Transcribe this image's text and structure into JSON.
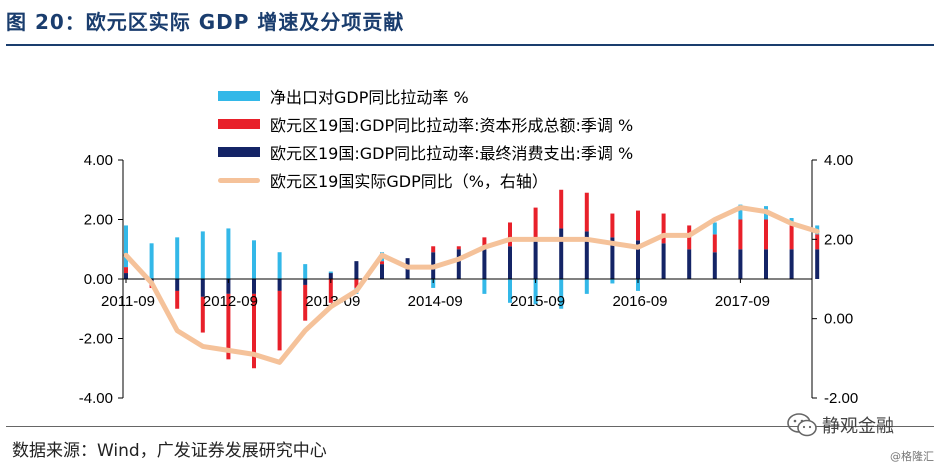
{
  "header": {
    "title": "图 20：欧元区实际 GDP 增速及分项贡献"
  },
  "footer": {
    "source": "数据来源：Wind，广发证券发展研究中心"
  },
  "watermark": {
    "text": "静观金融",
    "sub": "@格隆汇",
    "icon": "wechat-bubble-icon"
  },
  "colors": {
    "net_exports": "#33b8e8",
    "investment": "#e8202a",
    "consumption": "#142466",
    "gdp": "#f5c29a",
    "title": "#1a3d6e"
  },
  "chart_data": {
    "type": "bar",
    "stacked": true,
    "categories": [
      "2011-09",
      "2011-12",
      "2012-03",
      "2012-06",
      "2012-09",
      "2012-12",
      "2013-03",
      "2013-06",
      "2013-09",
      "2013-12",
      "2014-03",
      "2014-06",
      "2014-09",
      "2014-12",
      "2015-03",
      "2015-06",
      "2015-09",
      "2015-12",
      "2016-03",
      "2016-06",
      "2016-09",
      "2016-12",
      "2017-03",
      "2017-06",
      "2017-09",
      "2017-12",
      "2018-03",
      "2018-06"
    ],
    "x_tick_labels": [
      "2011-09",
      "2012-09",
      "2013-09",
      "2014-09",
      "2015-09",
      "2016-09",
      "2017-09"
    ],
    "left_axis": {
      "ylim": [
        -4,
        4
      ],
      "ticks": [
        "4.00",
        "2.00",
        "0.00",
        "-2.00",
        "-4.00"
      ]
    },
    "right_axis": {
      "ylim": [
        -2,
        4
      ],
      "ticks": [
        "4.00",
        "2.00",
        "0.00",
        "-2.00"
      ]
    },
    "grid": false,
    "legend_position": "top-left",
    "series": [
      {
        "name": "净出口对GDP同比拉动率 %",
        "kind": "bar",
        "axis": "left",
        "values": [
          1.4,
          1.2,
          1.4,
          1.6,
          1.7,
          1.3,
          0.9,
          0.5,
          0.05,
          -0.2,
          0.3,
          0.0,
          -0.3,
          0.0,
          -0.5,
          -0.8,
          -0.85,
          -1.0,
          -0.5,
          -0.15,
          -0.4,
          0.0,
          0.0,
          0.4,
          0.5,
          0.45,
          0.25,
          0.3
        ]
      },
      {
        "name": "欧元区19国:GDP同比拉动率:资本形成总额:季调 %",
        "kind": "bar",
        "axis": "left",
        "values": [
          0.2,
          -0.1,
          -0.6,
          -1.2,
          -2.2,
          -2.5,
          -2.0,
          -1.2,
          -0.8,
          -0.3,
          0.1,
          0.0,
          0.2,
          0.1,
          0.4,
          0.8,
          1.0,
          1.3,
          1.3,
          0.8,
          1.0,
          1.0,
          0.8,
          0.6,
          1.0,
          1.0,
          0.8,
          0.5
        ]
      },
      {
        "name": "欧元区19国:GDP同比拉动率:最终消费支出:季调 %",
        "kind": "bar",
        "axis": "left",
        "values": [
          0.2,
          -0.2,
          -0.4,
          -0.6,
          -0.5,
          -0.5,
          -0.4,
          -0.2,
          0.2,
          0.6,
          0.5,
          0.7,
          0.9,
          1.0,
          1.0,
          1.1,
          1.4,
          1.7,
          1.6,
          1.4,
          1.3,
          1.2,
          1.0,
          0.9,
          1.0,
          1.0,
          1.0,
          1.0
        ]
      },
      {
        "name": "欧元区19国实际GDP同比（%，右轴）",
        "kind": "line",
        "axis": "right",
        "values": [
          1.6,
          0.9,
          -0.3,
          -0.7,
          -0.8,
          -0.9,
          -1.1,
          -0.3,
          0.3,
          0.7,
          1.6,
          1.3,
          1.3,
          1.5,
          1.8,
          2.0,
          2.0,
          2.0,
          2.0,
          1.9,
          1.8,
          2.1,
          2.1,
          2.5,
          2.8,
          2.7,
          2.4,
          2.2
        ]
      }
    ]
  }
}
